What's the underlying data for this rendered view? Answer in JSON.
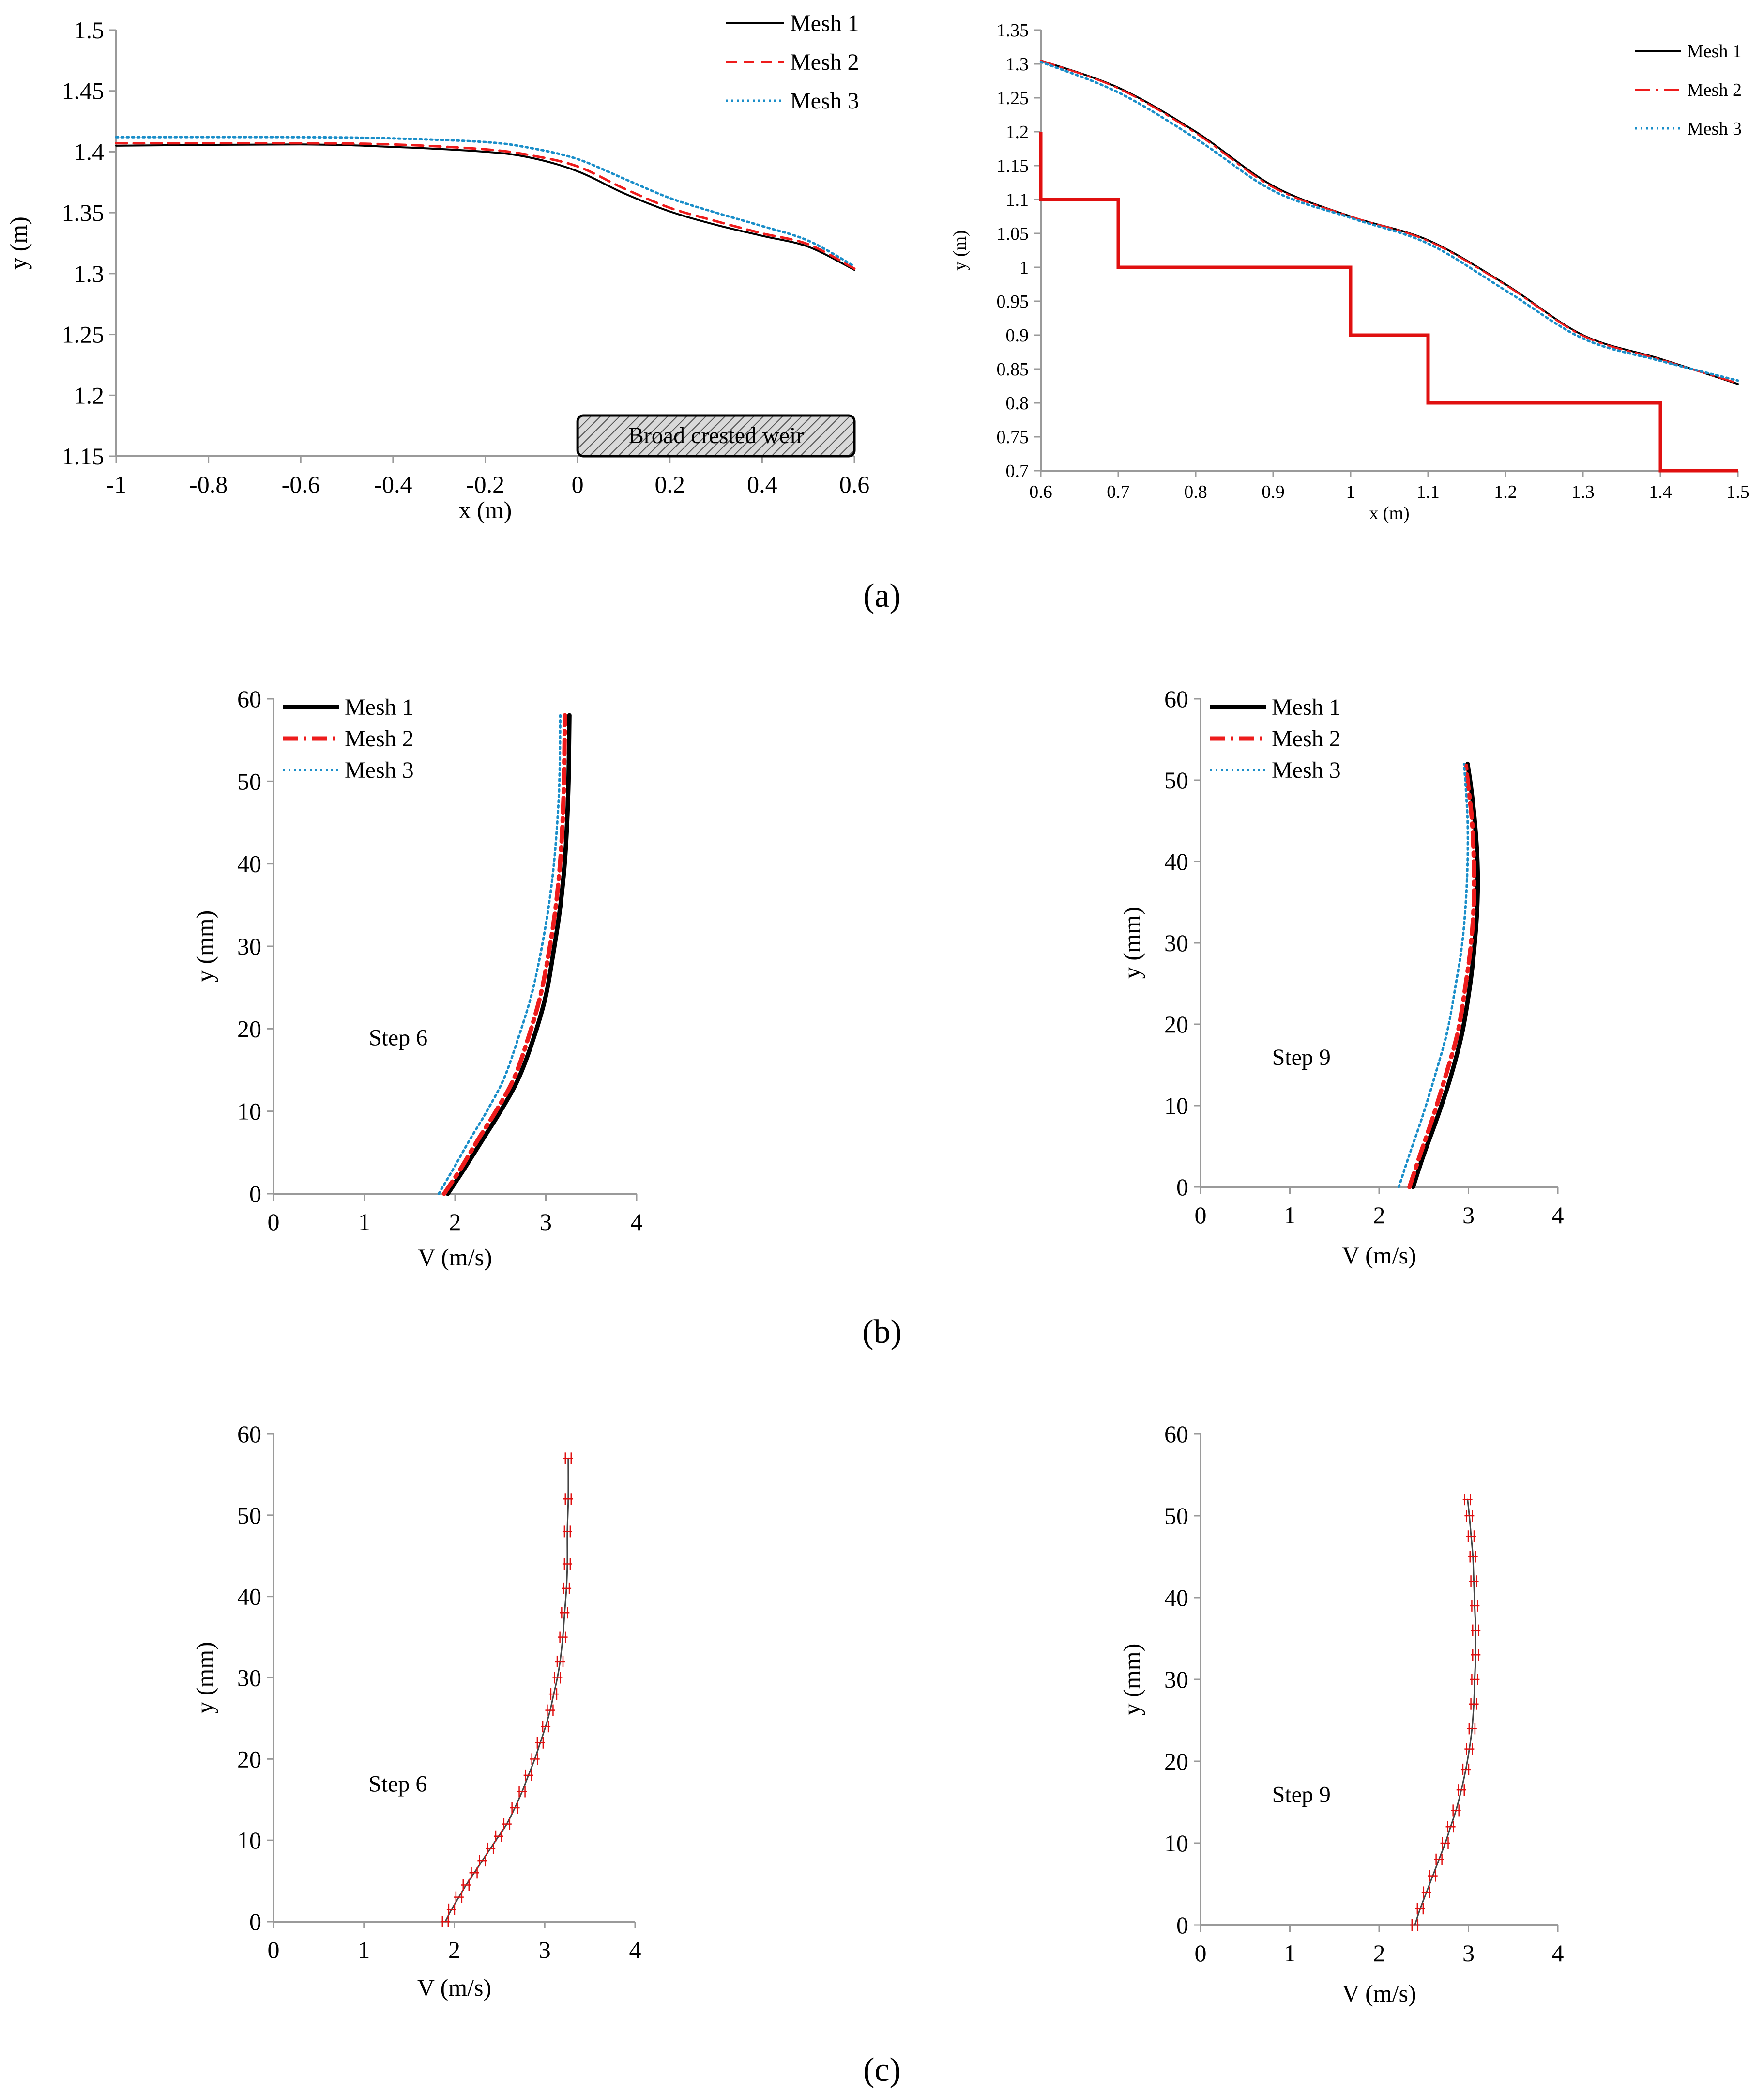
{
  "captions": [
    "(a)",
    "(b)",
    "(c)"
  ],
  "colors": {
    "mesh1": "#000000",
    "mesh2": "#ee1c1c",
    "mesh3": "#1a8ec9",
    "step": "#e01010",
    "axis": "#9a9a9a"
  },
  "chart_data": [
    {
      "id": "a-left",
      "type": "line",
      "title": "",
      "xlabel": "x (m)",
      "ylabel": "y (m)",
      "xlim": [
        -1,
        0.6
      ],
      "ylim": [
        1.15,
        1.5
      ],
      "xticks": [
        "-1",
        "-0.8",
        "-0.6",
        "-0.4",
        "-0.2",
        "0",
        "0.2",
        "0.4",
        "0.6"
      ],
      "xtick_values": [
        -1,
        -0.8,
        -0.6,
        -0.4,
        -0.2,
        0,
        0.2,
        0.4,
        0.6
      ],
      "yticks": [
        "1.15",
        "1.2",
        "1.25",
        "1.3",
        "1.35",
        "1.4",
        "1.45",
        "1.5"
      ],
      "ytick_values": [
        1.15,
        1.2,
        1.25,
        1.3,
        1.35,
        1.4,
        1.45,
        1.5
      ],
      "legend": "top-right",
      "annotation": {
        "text": "Broad crested weir",
        "x_from": 0,
        "x_to": 0.6
      },
      "series": [
        {
          "name": "Mesh 1",
          "style": "solid",
          "x": [
            -1,
            -0.6,
            -0.4,
            -0.2,
            -0.1,
            0,
            0.1,
            0.2,
            0.3,
            0.4,
            0.5,
            0.6
          ],
          "y": [
            1.405,
            1.406,
            1.404,
            1.4,
            1.395,
            1.384,
            1.366,
            1.351,
            1.34,
            1.331,
            1.322,
            1.303
          ]
        },
        {
          "name": "Mesh 2",
          "style": "dashed",
          "x": [
            -1,
            -0.6,
            -0.4,
            -0.2,
            -0.1,
            0,
            0.1,
            0.2,
            0.3,
            0.4,
            0.5,
            0.6
          ],
          "y": [
            1.407,
            1.407,
            1.406,
            1.402,
            1.397,
            1.388,
            1.37,
            1.354,
            1.343,
            1.333,
            1.324,
            1.304
          ]
        },
        {
          "name": "Mesh 3",
          "style": "dotted",
          "x": [
            -1,
            -0.6,
            -0.4,
            -0.2,
            -0.1,
            0,
            0.1,
            0.2,
            0.3,
            0.4,
            0.5,
            0.6
          ],
          "y": [
            1.412,
            1.412,
            1.411,
            1.408,
            1.403,
            1.394,
            1.378,
            1.362,
            1.35,
            1.339,
            1.327,
            1.306
          ]
        }
      ]
    },
    {
      "id": "a-right",
      "type": "line",
      "title": "",
      "xlabel": "x (m)",
      "ylabel": "y (m)",
      "xlim": [
        0.6,
        1.5
      ],
      "ylim": [
        0.7,
        1.35
      ],
      "xticks": [
        "0.6",
        "0.7",
        "0.8",
        "0.9",
        "1",
        "1.1",
        "1.2",
        "1.3",
        "1.4",
        "1.5"
      ],
      "xtick_values": [
        0.6,
        0.7,
        0.8,
        0.9,
        1,
        1.1,
        1.2,
        1.3,
        1.4,
        1.5
      ],
      "yticks": [
        "0.7",
        "0.75",
        "0.8",
        "0.85",
        "0.9",
        "0.95",
        "1",
        "1.05",
        "1.1",
        "1.15",
        "1.2",
        "1.25",
        "1.3",
        "1.35"
      ],
      "ytick_values": [
        0.7,
        0.75,
        0.8,
        0.85,
        0.9,
        0.95,
        1,
        1.05,
        1.1,
        1.15,
        1.2,
        1.25,
        1.3,
        1.35
      ],
      "legend": "top-right",
      "steps": {
        "x": [
          0.6,
          0.6,
          0.7,
          0.7,
          1.0,
          1.0,
          1.1,
          1.1,
          1.4,
          1.4,
          1.5
        ],
        "y": [
          1.2,
          1.1,
          1.1,
          1.0,
          1.0,
          0.9,
          0.9,
          0.8,
          0.8,
          0.7,
          0.7
        ]
      },
      "series": [
        {
          "name": "Mesh 1",
          "style": "solid",
          "x": [
            0.6,
            0.7,
            0.8,
            0.9,
            1.0,
            1.1,
            1.2,
            1.3,
            1.4,
            1.5
          ],
          "y": [
            1.305,
            1.265,
            1.2,
            1.12,
            1.075,
            1.04,
            0.975,
            0.9,
            0.865,
            0.828
          ]
        },
        {
          "name": "Mesh 2",
          "style": "dashdot",
          "x": [
            0.6,
            0.7,
            0.8,
            0.9,
            1.0,
            1.1,
            1.2,
            1.3,
            1.4,
            1.5
          ],
          "y": [
            1.305,
            1.264,
            1.198,
            1.118,
            1.075,
            1.039,
            0.974,
            0.899,
            0.864,
            0.829
          ]
        },
        {
          "name": "Mesh 3",
          "style": "dotted",
          "x": [
            0.6,
            0.7,
            0.8,
            0.9,
            1.0,
            1.1,
            1.2,
            1.3,
            1.4,
            1.5
          ],
          "y": [
            1.303,
            1.258,
            1.19,
            1.113,
            1.073,
            1.035,
            0.966,
            0.895,
            0.862,
            0.833
          ]
        }
      ]
    },
    {
      "id": "b-left",
      "type": "line",
      "title": "",
      "xlabel": "V (m/s)",
      "ylabel": "y (mm)",
      "xlim": [
        0,
        4
      ],
      "ylim": [
        0,
        60
      ],
      "xticks": [
        "0",
        "1",
        "2",
        "3",
        "4"
      ],
      "xtick_values": [
        0,
        1,
        2,
        3,
        4
      ],
      "yticks": [
        "0",
        "10",
        "20",
        "30",
        "40",
        "50",
        "60"
      ],
      "ytick_values": [
        0,
        10,
        20,
        30,
        40,
        50,
        60
      ],
      "legend": "top-left",
      "annotation": {
        "text": "Step 6",
        "x": 1.05,
        "y": 18
      },
      "series": [
        {
          "name": "Mesh 1",
          "style": "solid-thick",
          "x": [
            1.92,
            2.1,
            2.3,
            2.5,
            2.7,
            2.87,
            3.0,
            3.08,
            3.15,
            3.2,
            3.23,
            3.25,
            3.26
          ],
          "y": [
            0,
            3,
            6.5,
            10,
            14,
            19,
            24,
            29,
            34,
            39,
            44,
            50,
            58
          ]
        },
        {
          "name": "Mesh 2",
          "style": "dashdot-thick",
          "x": [
            1.88,
            2.06,
            2.25,
            2.45,
            2.65,
            2.81,
            2.94,
            3.03,
            3.1,
            3.15,
            3.18,
            3.2,
            3.21
          ],
          "y": [
            0,
            3,
            6.5,
            10,
            14,
            19,
            24,
            29,
            34,
            39,
            44,
            50,
            58
          ]
        },
        {
          "name": "Mesh 3",
          "style": "dotted",
          "x": [
            1.82,
            1.98,
            2.16,
            2.35,
            2.54,
            2.7,
            2.84,
            2.94,
            3.02,
            3.08,
            3.12,
            3.15,
            3.16
          ],
          "y": [
            0,
            3,
            6.5,
            10,
            14,
            19,
            24,
            29,
            34,
            39,
            44,
            50,
            58
          ]
        }
      ]
    },
    {
      "id": "b-right",
      "type": "line",
      "title": "",
      "xlabel": "V (m/s)",
      "ylabel": "y (mm)",
      "xlim": [
        0,
        4
      ],
      "ylim": [
        0,
        60
      ],
      "xticks": [
        "0",
        "1",
        "2",
        "3",
        "4"
      ],
      "xtick_values": [
        0,
        1,
        2,
        3,
        4
      ],
      "yticks": [
        "0",
        "10",
        "20",
        "30",
        "40",
        "50",
        "60"
      ],
      "ytick_values": [
        0,
        10,
        20,
        30,
        40,
        50,
        60
      ],
      "legend": "top-left",
      "annotation": {
        "text": "Step 9",
        "x": 0.8,
        "y": 15
      },
      "series": [
        {
          "name": "Mesh 1",
          "style": "solid-thick",
          "x": [
            2.38,
            2.5,
            2.65,
            2.8,
            2.93,
            3.02,
            3.07,
            3.1,
            3.1,
            3.07,
            3.03,
            2.99
          ],
          "y": [
            0,
            4,
            8.5,
            13.5,
            19,
            25,
            30,
            35,
            40,
            45,
            49,
            52
          ]
        },
        {
          "name": "Mesh 2",
          "style": "dashdot-thick",
          "x": [
            2.34,
            2.46,
            2.6,
            2.74,
            2.88,
            2.97,
            3.03,
            3.06,
            3.06,
            3.04,
            3.0,
            2.97
          ],
          "y": [
            0,
            4,
            8.5,
            13.5,
            19,
            25,
            30,
            35,
            40,
            45,
            49,
            52
          ]
        },
        {
          "name": "Mesh 3",
          "style": "dotted",
          "x": [
            2.22,
            2.34,
            2.48,
            2.62,
            2.76,
            2.86,
            2.93,
            2.97,
            2.99,
            2.99,
            2.97,
            2.95
          ],
          "y": [
            0,
            4,
            8.5,
            13.5,
            19,
            25,
            30,
            35,
            40,
            45,
            49,
            52
          ]
        }
      ]
    },
    {
      "id": "c-left",
      "type": "line",
      "title": "",
      "xlabel": "V (m/s)",
      "ylabel": "y (mm)",
      "xlim": [
        0,
        4
      ],
      "ylim": [
        0,
        60
      ],
      "xticks": [
        "0",
        "1",
        "2",
        "3",
        "4"
      ],
      "xtick_values": [
        0,
        1,
        2,
        3,
        4
      ],
      "yticks": [
        "0",
        "10",
        "20",
        "30",
        "40",
        "50",
        "60"
      ],
      "ytick_values": [
        0,
        10,
        20,
        30,
        40,
        50,
        60
      ],
      "annotation": {
        "text": "Step 6",
        "x": 1.05,
        "y": 16
      },
      "error_bars": true,
      "series": [
        {
          "name": "Step 6",
          "style": "solid-thin",
          "x": [
            1.9,
            1.97,
            2.05,
            2.13,
            2.22,
            2.31,
            2.4,
            2.49,
            2.58,
            2.67,
            2.75,
            2.82,
            2.89,
            2.95,
            3.01,
            3.06,
            3.1,
            3.14,
            3.17,
            3.2,
            3.22,
            3.24,
            3.25,
            3.25,
            3.26,
            3.26
          ],
          "y": [
            0,
            1.5,
            3,
            4.5,
            6,
            7.5,
            9,
            10.5,
            12,
            14,
            16,
            18,
            20,
            22,
            24,
            26,
            28,
            30,
            32,
            35,
            38,
            41,
            44,
            48,
            52,
            57
          ]
        }
      ]
    },
    {
      "id": "c-right",
      "type": "line",
      "title": "",
      "xlabel": "V (m/s)",
      "ylabel": "y (mm)",
      "xlim": [
        0,
        4
      ],
      "ylim": [
        0,
        60
      ],
      "xticks": [
        "0",
        "1",
        "2",
        "3",
        "4"
      ],
      "xtick_values": [
        0,
        1,
        2,
        3,
        4
      ],
      "yticks": [
        "0",
        "10",
        "20",
        "30",
        "40",
        "50",
        "60"
      ],
      "ytick_values": [
        0,
        10,
        20,
        30,
        40,
        50,
        60
      ],
      "annotation": {
        "text": "Step 9",
        "x": 0.8,
        "y": 15
      },
      "error_bars": true,
      "series": [
        {
          "name": "Step 9",
          "style": "solid-thin",
          "x": [
            2.4,
            2.46,
            2.53,
            2.6,
            2.67,
            2.74,
            2.8,
            2.86,
            2.92,
            2.97,
            3.01,
            3.04,
            3.06,
            3.07,
            3.08,
            3.08,
            3.07,
            3.06,
            3.05,
            3.03,
            3.01,
            2.99
          ],
          "y": [
            0,
            2,
            4,
            6,
            8,
            10,
            12,
            14,
            16.5,
            19,
            21.5,
            24,
            27,
            30,
            33,
            36,
            39,
            42,
            45,
            47.5,
            50,
            52
          ]
        }
      ]
    }
  ]
}
